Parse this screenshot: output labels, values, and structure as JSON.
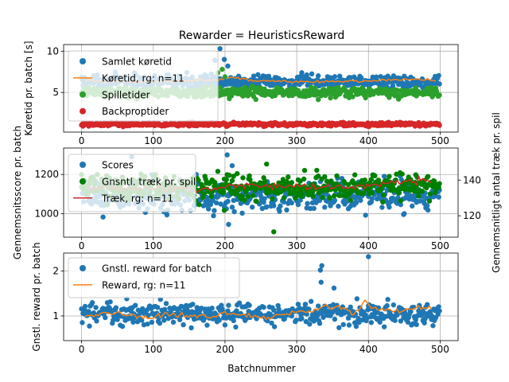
{
  "figure": {
    "title": "Rewarder = HeuristicsReward",
    "xlabel": "Batchnummer"
  },
  "chart_data": [
    {
      "type": "scatter",
      "ylabel": "Køretid pr. batch [s]",
      "xlim": [
        -25,
        525
      ],
      "ylim": [
        0.2,
        10.8
      ],
      "xticks": [
        0,
        100,
        200,
        300,
        400,
        500
      ],
      "yticks": [
        5,
        10
      ],
      "grid": true,
      "legend_position": "top-left",
      "series": [
        {
          "name": "Samlet køretid",
          "kind": "points",
          "color": "#1f77b4",
          "center": 6.3,
          "spread": 0.7,
          "outliers": [
            [
              186,
              8.9
            ],
            [
              193,
              10.3
            ],
            [
              199,
              9.0
            ],
            [
              204,
              8.2
            ]
          ]
        },
        {
          "name": "Køretid, rg: n=11",
          "kind": "line",
          "color": "#ff7f0e",
          "x": [
            5,
            50,
            100,
            150,
            190,
            210,
            250,
            300,
            350,
            400,
            450,
            495
          ],
          "y": [
            6.4,
            6.3,
            6.3,
            6.4,
            6.5,
            6.8,
            6.4,
            6.3,
            6.3,
            6.4,
            6.6,
            6.5
          ]
        },
        {
          "name": "Spilletider",
          "kind": "points",
          "color": "#2ca02c",
          "center": 5.0,
          "spread": 0.55,
          "outliers": [
            [
              190,
              7.4
            ],
            [
              196,
              7.8
            ],
            [
              200,
              6.9
            ]
          ]
        },
        {
          "name": "Backproptider",
          "kind": "points",
          "color": "#d62728",
          "center": 1.15,
          "spread": 0.2,
          "outliers": []
        }
      ]
    },
    {
      "type": "scatter",
      "ylabel": "Gennemsnitsscore pr. batch",
      "ylabel_right": "Gennemsnitligt antal træk pr. spil",
      "xlim": [
        -25,
        525
      ],
      "ylim": [
        880,
        1335
      ],
      "ylim_right": [
        108,
        158
      ],
      "xticks": [
        0,
        100,
        200,
        300,
        400,
        500
      ],
      "yticks": [
        1000,
        1200
      ],
      "yticks_right": [
        120,
        140
      ],
      "grid": true,
      "legend_position": "top-left",
      "series": [
        {
          "name": "Scores",
          "kind": "points",
          "color": "#1f77b4",
          "axis": "left",
          "center": 1090,
          "spread": 70,
          "outliers": [
            [
              70,
              1290
            ],
            [
              160,
              1200
            ],
            [
              203,
              1300
            ],
            [
              205,
              945
            ],
            [
              210,
              1245
            ]
          ]
        },
        {
          "name": "Gnsntl. træk pr. spil",
          "kind": "points",
          "color": "#008000",
          "axis": "right",
          "center": 136,
          "spread": 6,
          "outliers": [
            [
              268,
              111
            ],
            [
              258,
              149
            ],
            [
              199,
              123
            ]
          ]
        },
        {
          "name": "Træk, rg: n=11",
          "kind": "line",
          "color": "#d62728",
          "axis": "right",
          "x": [
            5,
            50,
            100,
            150,
            180,
            200,
            230,
            260,
            300,
            340,
            380,
            420,
            450,
            490
          ],
          "y": [
            135.5,
            135.0,
            135.5,
            135.0,
            134.5,
            136.5,
            137.0,
            136.8,
            136.5,
            136.0,
            136.0,
            138.5,
            139.0,
            139.5
          ]
        }
      ]
    },
    {
      "type": "scatter",
      "ylabel": "Gnstl. reward pr. batch",
      "xlim": [
        -25,
        525
      ],
      "ylim": [
        0.45,
        2.4
      ],
      "xticks": [
        0,
        100,
        200,
        300,
        400,
        500
      ],
      "yticks": [
        1,
        2
      ],
      "grid": true,
      "legend_position": "top-left",
      "series": [
        {
          "name": "Gnstl. reward for batch",
          "kind": "points",
          "color": "#1f77b4",
          "center": 1.05,
          "spread": 0.22,
          "outliers": [
            [
              335,
              2.12
            ],
            [
              333,
              2.02
            ],
            [
              400,
              2.32
            ],
            [
              334,
              1.75
            ],
            [
              352,
              1.62
            ]
          ]
        },
        {
          "name": "Reward, rg: n=11",
          "kind": "line",
          "color": "#ff7f0e",
          "x": [
            5,
            30,
            60,
            90,
            120,
            150,
            180,
            200,
            230,
            260,
            290,
            320,
            340,
            360,
            380,
            395,
            410,
            430,
            460,
            490
          ],
          "y": [
            1.02,
            1.05,
            1.02,
            0.97,
            1.05,
            1.0,
            0.98,
            1.08,
            1.0,
            0.95,
            1.05,
            1.1,
            1.25,
            1.18,
            1.05,
            1.3,
            1.15,
            1.1,
            1.15,
            1.2
          ]
        }
      ]
    }
  ]
}
